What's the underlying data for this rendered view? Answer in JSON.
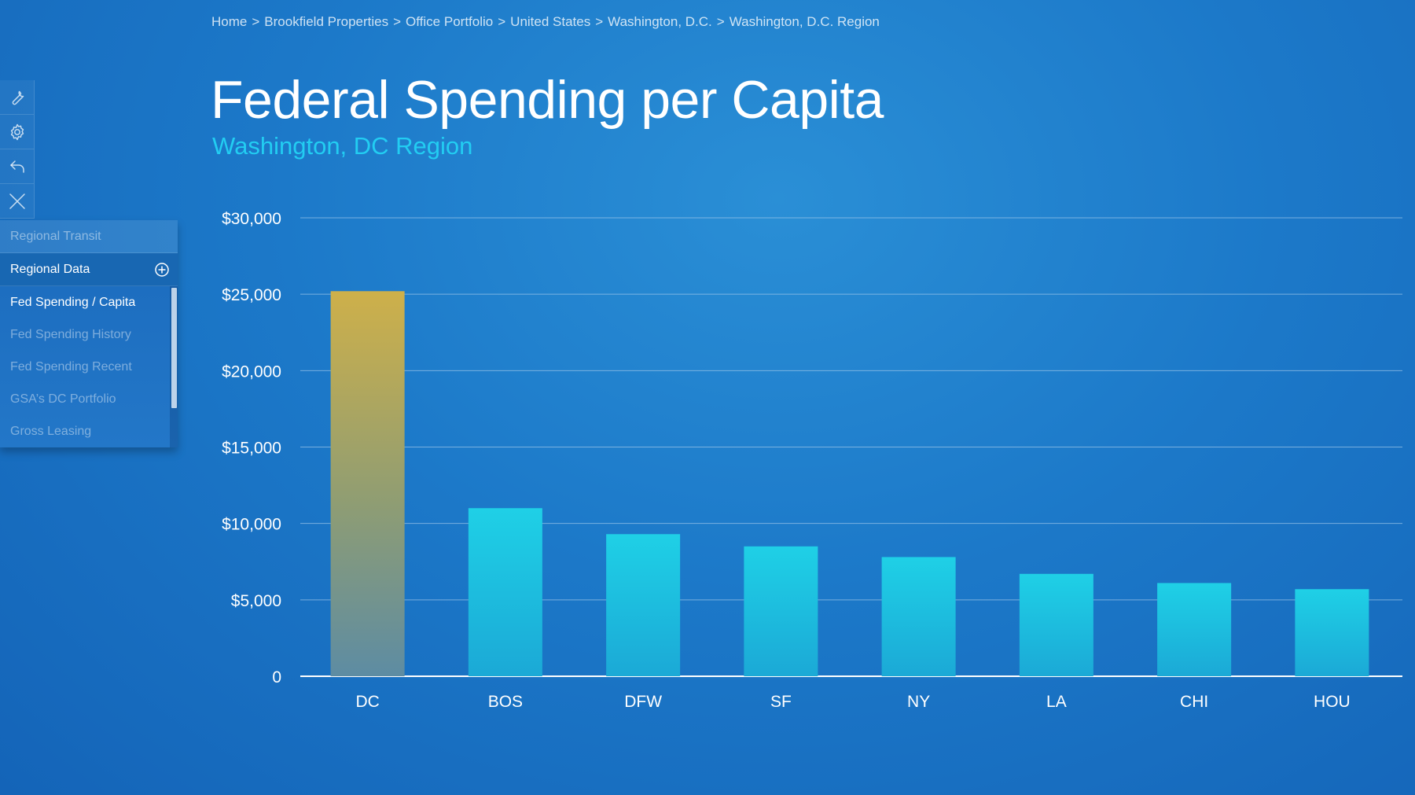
{
  "breadcrumb": [
    "Home",
    "Brookfield Properties",
    "Office Portfolio",
    "United States",
    "Washington, D.C.",
    "Washington, D.C. Region"
  ],
  "breadcrumb_separator": ">",
  "page_title": "Federal Spending per Capita",
  "page_subtitle": "Washington, DC Region",
  "toolbar": {
    "items": [
      {
        "icon": "wrench-icon"
      },
      {
        "icon": "gear-icon"
      },
      {
        "icon": "back-arrow-icon"
      },
      {
        "icon": "close-icon"
      }
    ]
  },
  "side_menu": {
    "sections": [
      {
        "label": "Regional Transit"
      },
      {
        "label": "Regional Data",
        "icon": "plus-circle-icon"
      }
    ],
    "items": [
      {
        "label": "Fed Spending / Capita",
        "active": true
      },
      {
        "label": "Fed Spending History",
        "active": false
      },
      {
        "label": "Fed Spending Recent",
        "active": false
      },
      {
        "label": "GSA’s DC Portfolio",
        "active": false
      },
      {
        "label": "Gross Leasing",
        "active": false
      }
    ]
  },
  "colors": {
    "highlight_bar": "#c8ae4a",
    "bar": "#1ec6e2",
    "subtitle": "#22cdf2",
    "gridline": "#9fc7ea"
  },
  "chart_data": {
    "type": "bar",
    "categories": [
      "DC",
      "BOS",
      "DFW",
      "SF",
      "NY",
      "LA",
      "CHI",
      "HOU"
    ],
    "values": [
      25200,
      11000,
      9300,
      8500,
      7800,
      6700,
      6100,
      5700
    ],
    "highlight": "DC",
    "ylim": [
      0,
      30000
    ],
    "yticks": [
      0,
      5000,
      10000,
      15000,
      20000,
      25000,
      30000
    ],
    "ytick_labels": [
      "0",
      "$5,000",
      "$10,000",
      "$15,000",
      "$20,000",
      "$25,000",
      "$30,000"
    ],
    "grid": true
  }
}
